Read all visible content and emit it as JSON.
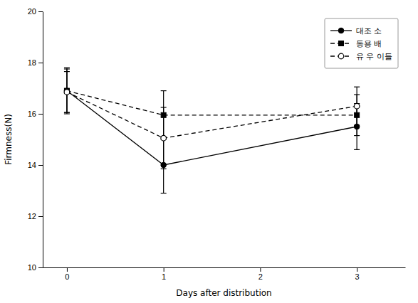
{
  "chart_data": {
    "type": "line",
    "x": [
      0,
      1,
      3
    ],
    "xlabel": "Days after distribution",
    "ylabel": "Firmness(N)",
    "xlim": [
      -0.25,
      3.5
    ],
    "ylim": [
      10,
      20
    ],
    "xticks": [
      0,
      1,
      2,
      3
    ],
    "yticks": [
      10,
      12,
      14,
      16,
      18,
      20
    ],
    "legend": "upper right",
    "series": [
      {
        "name": "대조 소",
        "color": "black",
        "marker": "circle",
        "line_style": "solid",
        "values": [
          16.9,
          14.0,
          15.5
        ],
        "errors": [
          0.9,
          1.1,
          0.9
        ]
      },
      {
        "name": "동용 배",
        "color": "black",
        "marker": "square",
        "line_style": "dashed",
        "values": [
          16.9,
          15.95,
          15.95
        ],
        "errors": [
          0.85,
          0.95,
          0.8
        ]
      },
      {
        "name": "유 우 이들",
        "color": "black",
        "marker": "circle-open",
        "line_style": "dashed",
        "values": [
          16.85,
          15.05,
          16.3
        ],
        "errors": [
          0.8,
          1.2,
          0.75
        ]
      }
    ]
  }
}
